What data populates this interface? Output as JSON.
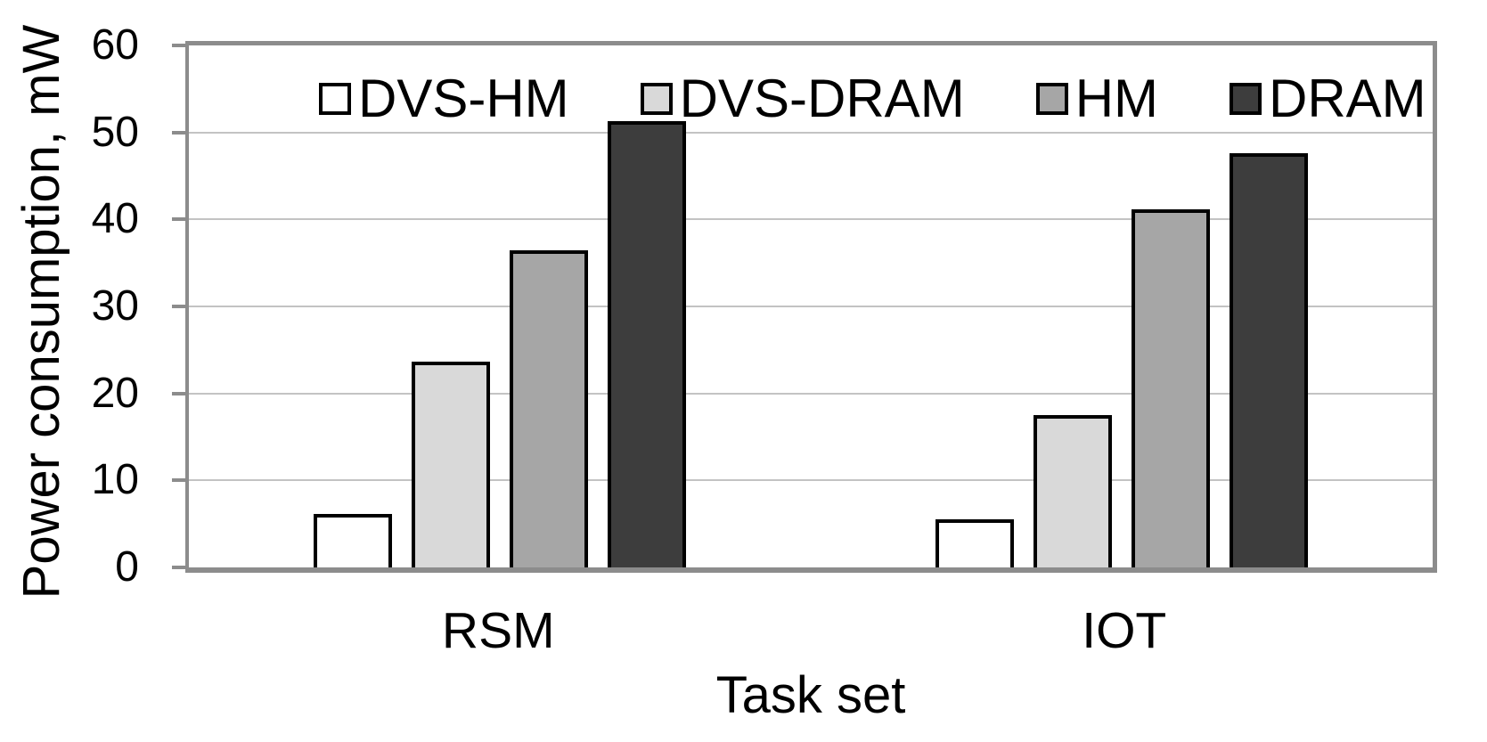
{
  "colors": {
    "axis": "#8C8C8C",
    "gridline": "#C3C3C3",
    "bar_border": "#000000",
    "text": "#000000",
    "background": "#FFFFFF"
  },
  "chart_data": {
    "type": "bar",
    "title": "",
    "xlabel": "Task set",
    "ylabel": "Power consumption, mW",
    "ylim": [
      0,
      60
    ],
    "yticks": [
      0,
      10,
      20,
      30,
      40,
      50,
      60
    ],
    "grid": true,
    "legend_position": "top-inside",
    "categories": [
      "RSM",
      "IOT"
    ],
    "series": [
      {
        "name": "DVS-HM",
        "fill": "#FFFFFF",
        "values": [
          6.1,
          5.5
        ]
      },
      {
        "name": "DVS-DRAM",
        "fill": "#D9D9D9",
        "values": [
          23.7,
          17.5
        ]
      },
      {
        "name": "HM",
        "fill": "#A6A6A6",
        "values": [
          36.5,
          41.2
        ]
      },
      {
        "name": "DRAM",
        "fill": "#3D3D3D",
        "values": [
          51.3,
          47.6
        ]
      }
    ]
  }
}
